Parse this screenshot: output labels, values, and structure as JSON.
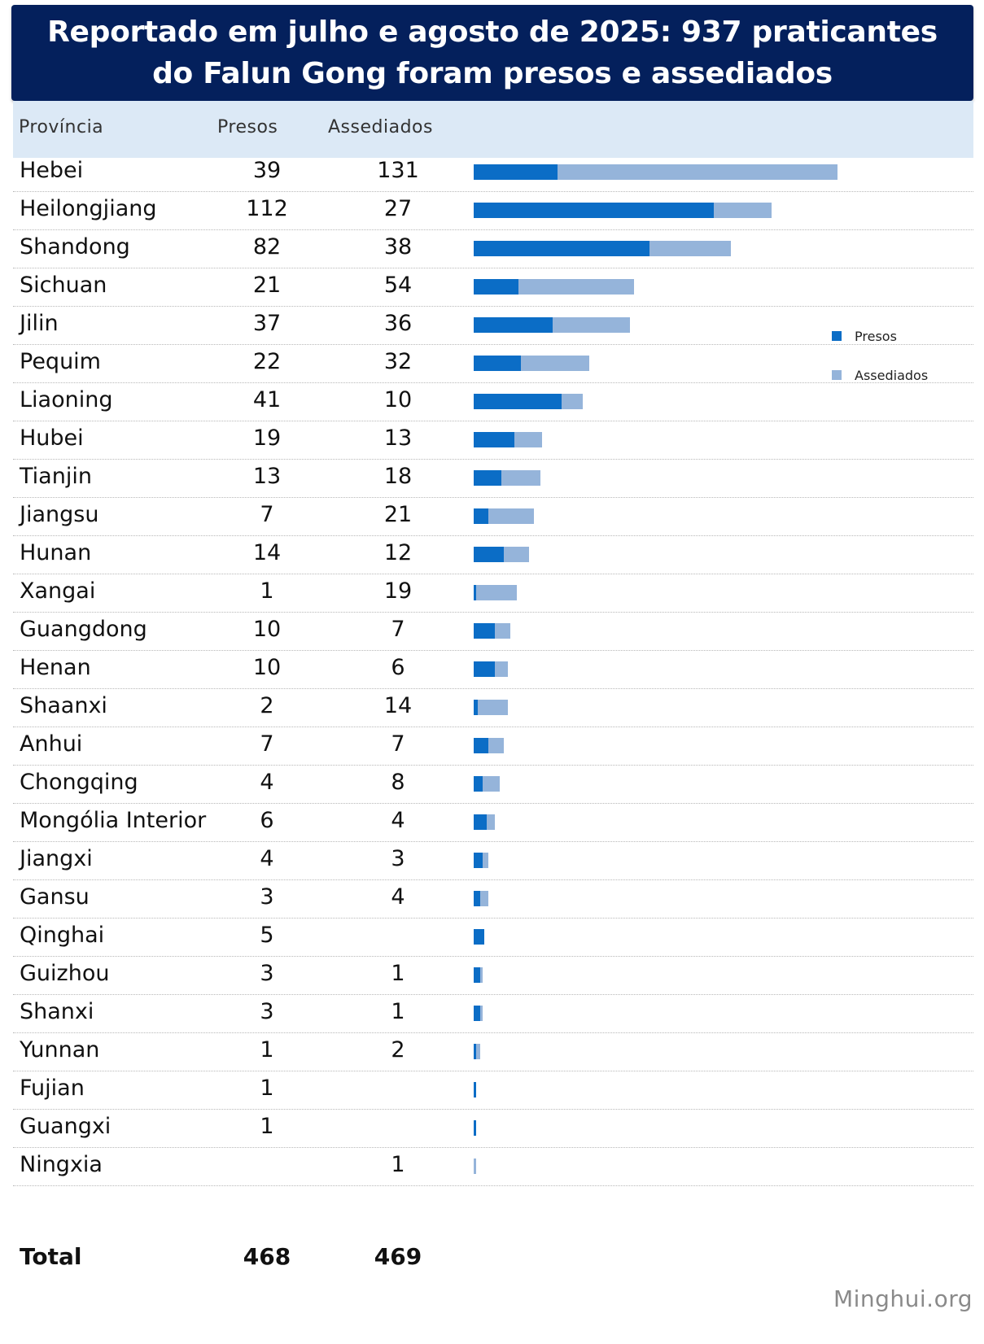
{
  "title": "Reportado em julho e agosto de 2025: 937 praticantes do Falun Gong foram presos e assediados",
  "headers": {
    "provincia": "Província",
    "presos": "Presos",
    "assediados": "Assediados"
  },
  "legend": {
    "presos": "Presos",
    "assediados": "Assediados"
  },
  "total": {
    "label": "Total",
    "presos": "468",
    "assediados": "469"
  },
  "watermark": "Minghui.org",
  "colors": {
    "title_bg": "#04205c",
    "header_bg": "#dce9f6",
    "presos": "#0b6dc6",
    "assediados": "#95b4da"
  },
  "chart_data": {
    "type": "bar",
    "orientation": "horizontal",
    "stacked": true,
    "categories": [
      "Hebei",
      "Heilongjiang",
      "Shandong",
      "Sichuan",
      "Jilin",
      "Pequim",
      "Liaoning",
      "Hubei",
      "Tianjin",
      "Jiangsu",
      "Hunan",
      "Xangai",
      "Guangdong",
      "Henan",
      "Shaanxi",
      "Anhui",
      "Chongqing",
      "Mongólia Interior",
      "Jiangxi",
      "Gansu",
      "Qinghai",
      "Guizhou",
      "Shanxi",
      "Yunnan",
      "Fujian",
      "Guangxi",
      "Ningxia"
    ],
    "series": [
      {
        "name": "Presos",
        "values": [
          39,
          112,
          82,
          21,
          37,
          22,
          41,
          19,
          13,
          7,
          14,
          1,
          10,
          10,
          2,
          7,
          4,
          6,
          4,
          3,
          5,
          3,
          3,
          1,
          1,
          1,
          null
        ]
      },
      {
        "name": "Assediados",
        "values": [
          131,
          27,
          38,
          54,
          36,
          32,
          10,
          13,
          18,
          21,
          12,
          19,
          7,
          6,
          14,
          7,
          8,
          4,
          3,
          4,
          null,
          1,
          1,
          2,
          null,
          null,
          1
        ]
      }
    ],
    "legend_position": "right"
  }
}
